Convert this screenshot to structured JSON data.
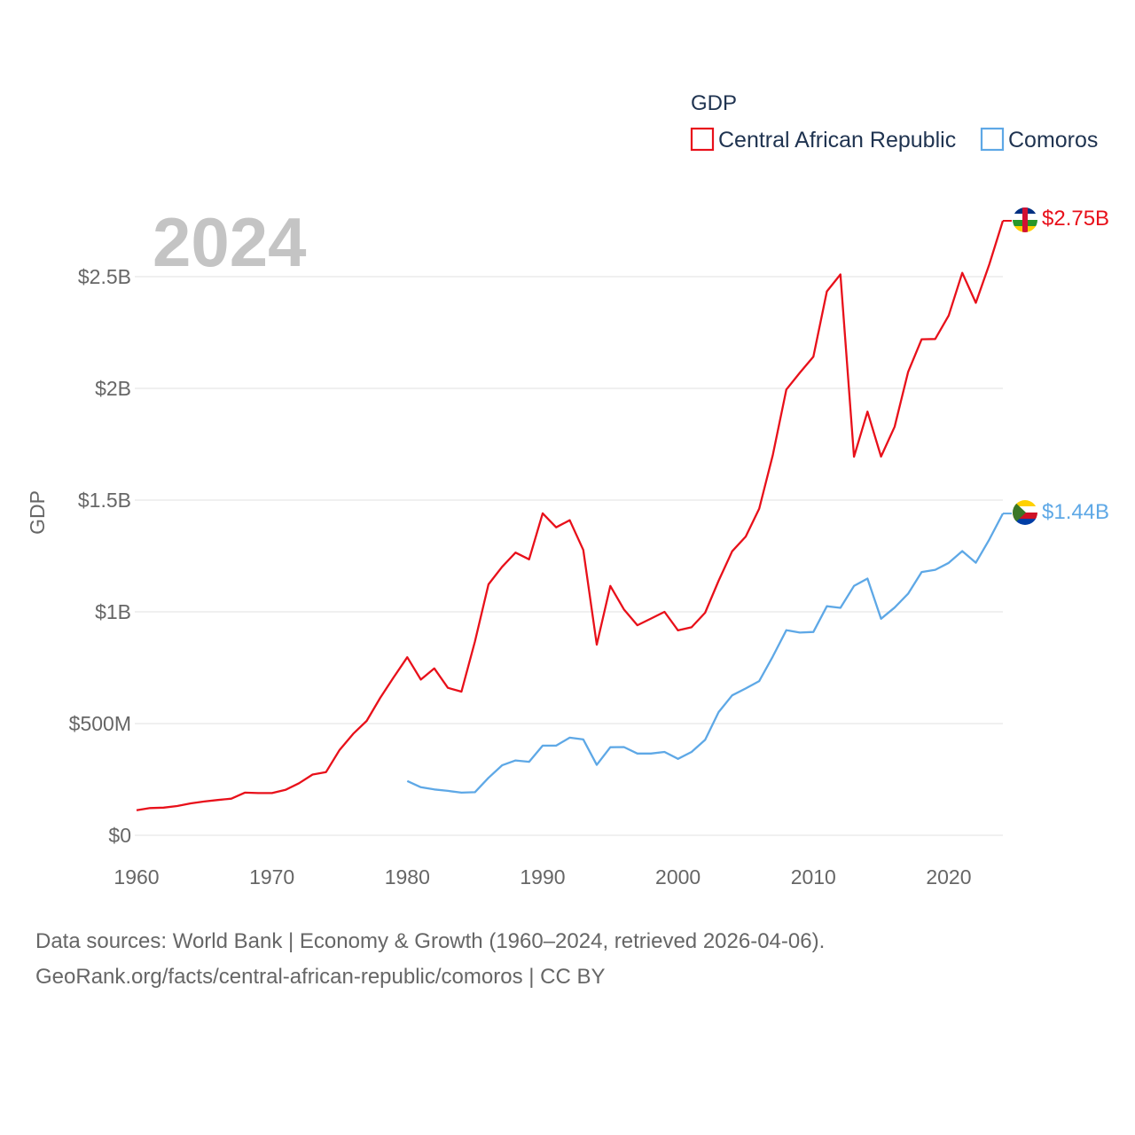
{
  "chart_data": {
    "type": "line",
    "title": "GDP",
    "year_label": "2024",
    "ylabel": "GDP",
    "xlabel": "",
    "xlim": [
      1960,
      2024
    ],
    "ylim": [
      0,
      2800000000
    ],
    "x_ticks": [
      1960,
      1970,
      1980,
      1990,
      2000,
      2010,
      2020
    ],
    "y_ticks": [
      {
        "value": 0,
        "label": "$0"
      },
      {
        "value": 500000000,
        "label": "$500M"
      },
      {
        "value": 1000000000,
        "label": "$1B"
      },
      {
        "value": 1500000000,
        "label": "$1.5B"
      },
      {
        "value": 2000000000,
        "label": "$2B"
      },
      {
        "value": 2500000000,
        "label": "$2.5B"
      }
    ],
    "series": [
      {
        "name": "Central African Republic",
        "color": "#e8101a",
        "end_label": "$2.75B",
        "flag_icon": "central-african-republic-flag-icon",
        "points": [
          [
            1960,
            112000000
          ],
          [
            1961,
            122000000
          ],
          [
            1962,
            124000000
          ],
          [
            1963,
            131000000
          ],
          [
            1964,
            143000000
          ],
          [
            1965,
            151000000
          ],
          [
            1966,
            158000000
          ],
          [
            1967,
            164000000
          ],
          [
            1968,
            191000000
          ],
          [
            1969,
            189000000
          ],
          [
            1970,
            189000000
          ],
          [
            1971,
            203000000
          ],
          [
            1972,
            233000000
          ],
          [
            1973,
            272000000
          ],
          [
            1974,
            283000000
          ],
          [
            1975,
            382000000
          ],
          [
            1976,
            454000000
          ],
          [
            1977,
            512000000
          ],
          [
            1978,
            615000000
          ],
          [
            1979,
            707000000
          ],
          [
            1980,
            797000000
          ],
          [
            1981,
            697000000
          ],
          [
            1982,
            747000000
          ],
          [
            1983,
            660000000
          ],
          [
            1984,
            643000000
          ],
          [
            1985,
            867000000
          ],
          [
            1986,
            1123000000
          ],
          [
            1987,
            1201000000
          ],
          [
            1988,
            1265000000
          ],
          [
            1989,
            1235000000
          ],
          [
            1990,
            1441000000
          ],
          [
            1991,
            1378000000
          ],
          [
            1992,
            1410000000
          ],
          [
            1993,
            1277000000
          ],
          [
            1994,
            853000000
          ],
          [
            1995,
            1116000000
          ],
          [
            1996,
            1011000000
          ],
          [
            1997,
            940000000
          ],
          [
            1998,
            970000000
          ],
          [
            1999,
            1000000000
          ],
          [
            2000,
            917000000
          ],
          [
            2001,
            931000000
          ],
          [
            2002,
            996000000
          ],
          [
            2003,
            1139000000
          ],
          [
            2004,
            1271000000
          ],
          [
            2005,
            1337000000
          ],
          [
            2006,
            1462000000
          ],
          [
            2007,
            1701000000
          ],
          [
            2008,
            1995000000
          ],
          [
            2009,
            2070000000
          ],
          [
            2010,
            2142000000
          ],
          [
            2011,
            2434000000
          ],
          [
            2012,
            2510000000
          ],
          [
            2013,
            1694000000
          ],
          [
            2014,
            1896000000
          ],
          [
            2015,
            1695000000
          ],
          [
            2016,
            1828000000
          ],
          [
            2017,
            2073000000
          ],
          [
            2018,
            2220000000
          ],
          [
            2019,
            2221000000
          ],
          [
            2020,
            2326000000
          ],
          [
            2021,
            2517000000
          ],
          [
            2022,
            2383000000
          ],
          [
            2023,
            2555000000
          ],
          [
            2024,
            2750000000
          ]
        ]
      },
      {
        "name": "Comoros",
        "color": "#5ea8e6",
        "end_label": "$1.44B",
        "flag_icon": "comoros-flag-icon",
        "points": [
          [
            1980,
            243000000
          ],
          [
            1981,
            215000000
          ],
          [
            1982,
            205000000
          ],
          [
            1983,
            199000000
          ],
          [
            1984,
            191000000
          ],
          [
            1985,
            193000000
          ],
          [
            1986,
            257000000
          ],
          [
            1987,
            313000000
          ],
          [
            1988,
            335000000
          ],
          [
            1989,
            329000000
          ],
          [
            1990,
            401000000
          ],
          [
            1991,
            401000000
          ],
          [
            1992,
            437000000
          ],
          [
            1993,
            429000000
          ],
          [
            1994,
            315000000
          ],
          [
            1995,
            394000000
          ],
          [
            1996,
            395000000
          ],
          [
            1997,
            366000000
          ],
          [
            1998,
            366000000
          ],
          [
            1999,
            373000000
          ],
          [
            2000,
            342000000
          ],
          [
            2001,
            373000000
          ],
          [
            2002,
            427000000
          ],
          [
            2003,
            551000000
          ],
          [
            2004,
            626000000
          ],
          [
            2005,
            657000000
          ],
          [
            2006,
            690000000
          ],
          [
            2007,
            800000000
          ],
          [
            2008,
            918000000
          ],
          [
            2009,
            907000000
          ],
          [
            2010,
            910000000
          ],
          [
            2011,
            1025000000
          ],
          [
            2012,
            1018000000
          ],
          [
            2013,
            1116000000
          ],
          [
            2014,
            1149000000
          ],
          [
            2015,
            969000000
          ],
          [
            2016,
            1019000000
          ],
          [
            2017,
            1081000000
          ],
          [
            2018,
            1178000000
          ],
          [
            2019,
            1188000000
          ],
          [
            2020,
            1219000000
          ],
          [
            2021,
            1272000000
          ],
          [
            2022,
            1220000000
          ],
          [
            2023,
            1324000000
          ],
          [
            2024,
            1440000000
          ]
        ]
      }
    ]
  },
  "legend": {
    "title": "GDP",
    "items": [
      {
        "label": "Central African Republic",
        "color": "#e8101a"
      },
      {
        "label": "Comoros",
        "color": "#5ea8e6"
      }
    ]
  },
  "footer": {
    "line1": "Data sources: World Bank | Economy & Growth (1960–2024, retrieved 2026-04-06).",
    "line2": "GeoRank.org/facts/central-african-republic/comoros | CC BY"
  }
}
